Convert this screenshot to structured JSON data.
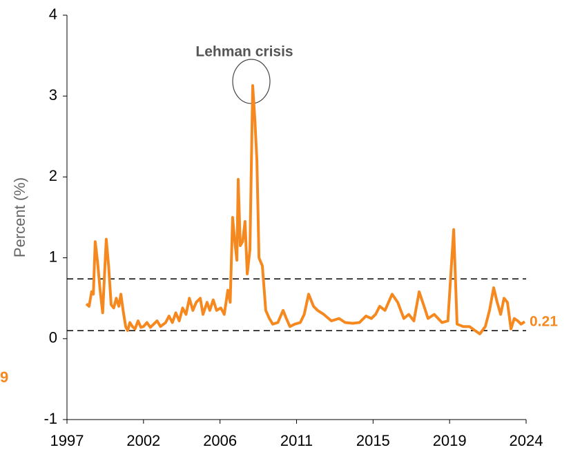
{
  "chart_data": {
    "type": "line",
    "y_label": "Percent (%)",
    "annotation": "Lehman crisis",
    "end_label": "0.21",
    "side_label": "9",
    "xlim": [
      1997,
      2024
    ],
    "xticks": [
      1997,
      {
        "value": 2001.5,
        "label": "2002"
      },
      2006,
      {
        "value": 2010.5,
        "label": "2011"
      },
      2015,
      {
        "value": 2019.5,
        "label": "2019"
      },
      2024
    ],
    "ylim": [
      -1,
      4
    ],
    "yticks": [
      -1,
      0,
      1,
      2,
      3,
      4
    ],
    "reference_lines": [
      0.74,
      0.1
    ],
    "series": [
      {
        "name": "Percent",
        "color": "#f5891f",
        "x": [
          1998.14,
          1998.3,
          1998.45,
          1998.55,
          1998.66,
          1998.8,
          1998.95,
          1999.1,
          1999.31,
          1999.45,
          1999.6,
          1999.75,
          1999.9,
          2000.05,
          2000.17,
          2000.3,
          2000.45,
          2000.57,
          2000.7,
          2000.85,
          2001.0,
          2001.18,
          2001.35,
          2001.5,
          2001.7,
          2001.9,
          2002.1,
          2002.3,
          2002.5,
          2002.8,
          2003.0,
          2003.2,
          2003.4,
          2003.6,
          2003.8,
          2004.0,
          2004.2,
          2004.4,
          2004.6,
          2004.84,
          2005.0,
          2005.24,
          2005.4,
          2005.6,
          2005.8,
          2006.05,
          2006.25,
          2006.46,
          2006.6,
          2006.74,
          2006.87,
          2006.99,
          2007.07,
          2007.19,
          2007.33,
          2007.47,
          2007.6,
          2007.76,
          2007.92,
          2008.05,
          2008.17,
          2008.29,
          2008.49,
          2008.69,
          2008.9,
          2009.1,
          2009.4,
          2009.71,
          2009.9,
          2010.11,
          2010.4,
          2010.72,
          2010.95,
          2011.21,
          2011.5,
          2011.74,
          2012.1,
          2012.55,
          2013.0,
          2013.36,
          2013.8,
          2014.2,
          2014.58,
          2014.9,
          2015.15,
          2015.39,
          2015.7,
          2016.12,
          2016.45,
          2016.81,
          2017.1,
          2017.4,
          2017.71,
          2018.0,
          2018.23,
          2018.6,
          2019.05,
          2019.4,
          2019.74,
          2019.94,
          2020.3,
          2020.67,
          2021.0,
          2021.28,
          2021.6,
          2021.85,
          2022.09,
          2022.3,
          2022.5,
          2022.7,
          2022.9,
          2023.11,
          2023.3,
          2023.51,
          2023.7,
          2023.92
        ],
        "values": [
          0.43,
          0.4,
          0.58,
          0.55,
          1.2,
          0.95,
          0.6,
          0.32,
          1.23,
          0.9,
          0.42,
          0.38,
          0.5,
          0.4,
          0.55,
          0.35,
          0.15,
          0.1,
          0.2,
          0.15,
          0.12,
          0.22,
          0.14,
          0.15,
          0.2,
          0.14,
          0.18,
          0.22,
          0.15,
          0.2,
          0.28,
          0.2,
          0.32,
          0.22,
          0.38,
          0.3,
          0.5,
          0.35,
          0.45,
          0.5,
          0.3,
          0.45,
          0.35,
          0.48,
          0.35,
          0.38,
          0.3,
          0.6,
          0.45,
          1.5,
          1.2,
          0.97,
          1.97,
          1.15,
          1.2,
          1.45,
          0.8,
          1.1,
          3.13,
          2.7,
          2.2,
          1.0,
          0.9,
          0.35,
          0.25,
          0.18,
          0.2,
          0.35,
          0.25,
          0.15,
          0.18,
          0.2,
          0.3,
          0.55,
          0.4,
          0.35,
          0.3,
          0.22,
          0.25,
          0.2,
          0.19,
          0.2,
          0.28,
          0.25,
          0.3,
          0.4,
          0.35,
          0.55,
          0.45,
          0.25,
          0.3,
          0.22,
          0.58,
          0.4,
          0.25,
          0.3,
          0.2,
          0.22,
          1.35,
          0.18,
          0.15,
          0.15,
          0.1,
          0.06,
          0.15,
          0.35,
          0.63,
          0.45,
          0.3,
          0.5,
          0.45,
          0.12,
          0.25,
          0.22,
          0.18,
          0.21
        ]
      }
    ]
  }
}
